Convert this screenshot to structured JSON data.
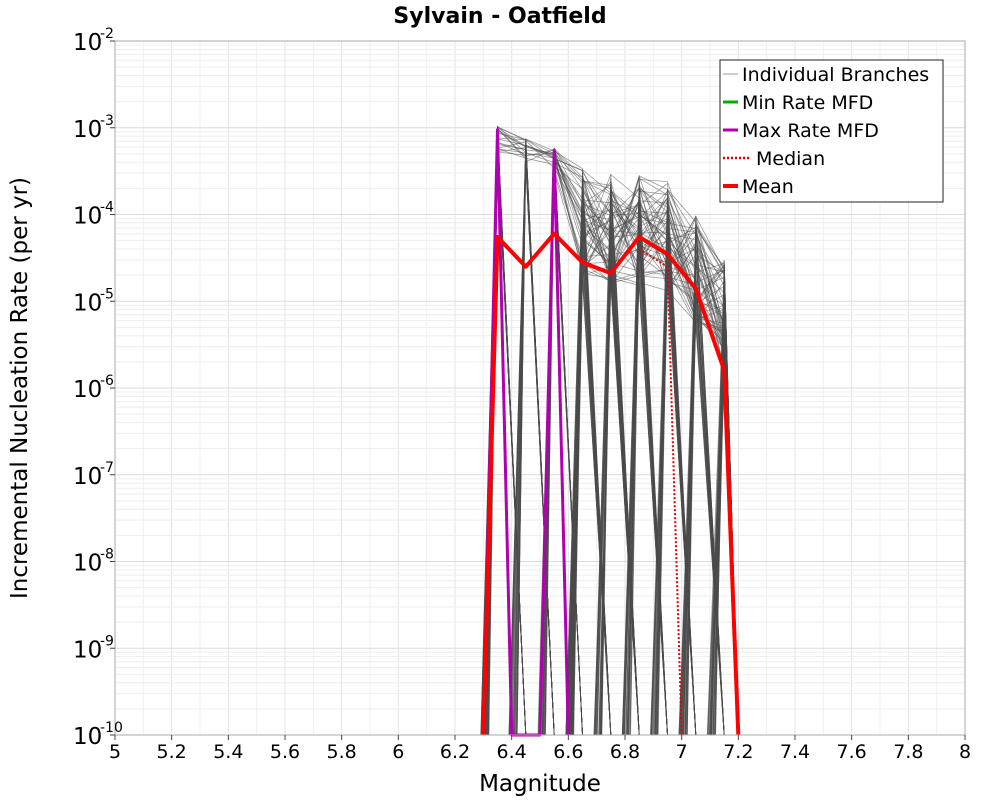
{
  "chart_data": {
    "type": "line",
    "title": "Sylvain - Oatfield",
    "xlabel": "Magnitude",
    "ylabel": "Incremental Nucleation Rate (per yr)",
    "xlim": [
      5,
      8
    ],
    "ylim": [
      1e-10,
      0.01
    ],
    "yscale": "log",
    "grid": true,
    "legend_position": "top-right",
    "x_ticks": [
      "5",
      "5.2",
      "5.4",
      "5.6",
      "5.8",
      "6",
      "6.2",
      "6.4",
      "6.6",
      "6.8",
      "7",
      "7.2",
      "7.4",
      "7.6",
      "7.8",
      "8"
    ],
    "y_ticks": [
      {
        "base": "10",
        "exp": "-2"
      },
      {
        "base": "10",
        "exp": "-3"
      },
      {
        "base": "10",
        "exp": "-4"
      },
      {
        "base": "10",
        "exp": "-5"
      },
      {
        "base": "10",
        "exp": "-6"
      },
      {
        "base": "10",
        "exp": "-7"
      },
      {
        "base": "10",
        "exp": "-8"
      },
      {
        "base": "10",
        "exp": "-9"
      },
      {
        "base": "10",
        "exp": "-10"
      }
    ],
    "legend": [
      {
        "label": "Individual Branches",
        "color": "#9a9a9a",
        "style": "thin"
      },
      {
        "label": "Min Rate MFD",
        "color": "#00b000",
        "style": "solid"
      },
      {
        "label": "Max Rate MFD",
        "color": "#b000b0",
        "style": "solid"
      },
      {
        "label": "Median",
        "color": "#e00000",
        "style": "dotted"
      },
      {
        "label": "Mean",
        "color": "#ff0000",
        "style": "thick"
      }
    ],
    "branch_magnitudes": [
      6.35,
      6.45,
      6.55,
      6.65,
      6.75,
      6.85,
      6.95,
      7.05,
      7.15
    ],
    "branch_peak_rates": [
      0.00105,
      0.00075,
      0.0006,
      0.00035,
      0.0003,
      0.00028,
      0.00025,
      0.0001,
      3e-05
    ],
    "series": [
      {
        "name": "Mean",
        "color": "#ff0000",
        "x": [
          6.3,
          6.35,
          6.45,
          6.55,
          6.65,
          6.75,
          6.85,
          6.95,
          7.05,
          7.15,
          7.2
        ],
        "values": [
          1e-10,
          5.5e-05,
          2.5e-05,
          6e-05,
          2.8e-05,
          2.1e-05,
          5.5e-05,
          3.5e-05,
          1.4e-05,
          1.6e-06,
          1e-10
        ]
      },
      {
        "name": "Median",
        "color": "#e00000",
        "x": [
          6.85,
          6.95,
          7.0
        ],
        "values": [
          4e-05,
          2.5e-05,
          1e-10
        ]
      },
      {
        "name": "Max Rate MFD",
        "color": "#b000b0",
        "x": [
          6.3,
          6.35,
          6.4,
          6.5,
          6.55,
          6.6
        ],
        "values": [
          1e-10,
          0.00095,
          1e-10,
          1e-10,
          0.00055,
          1e-10
        ]
      },
      {
        "name": "Min Rate MFD",
        "color": "#00b000",
        "x": [],
        "values": []
      }
    ]
  }
}
